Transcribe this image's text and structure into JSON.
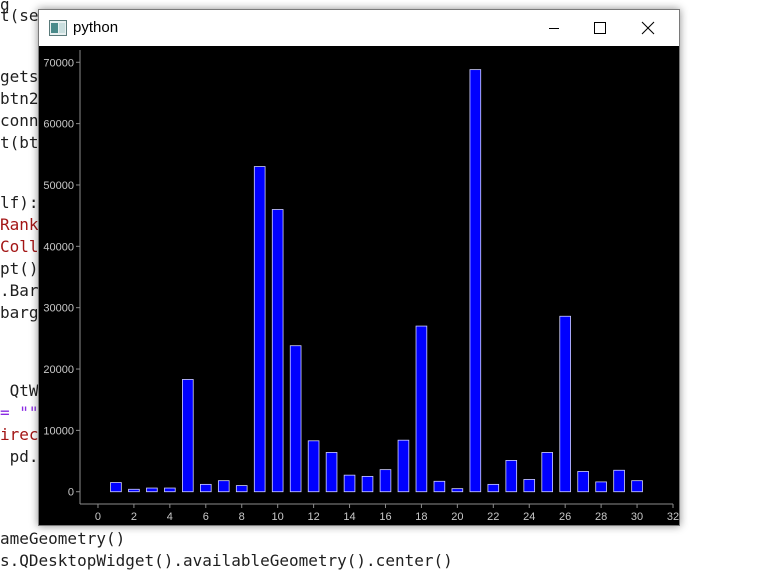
{
  "editor": {
    "lines": [
      {
        "text": "g",
        "top": -6,
        "cls": ""
      },
      {
        "text": "t(se",
        "top": 5,
        "cls": ""
      },
      {
        "text": "gets.",
        "top": 66,
        "cls": ""
      },
      {
        "text": "btn2.",
        "top": 88,
        "cls": ""
      },
      {
        "text": "conn",
        "top": 110,
        "cls": ""
      },
      {
        "text": "t(bt",
        "top": 132,
        "cls": ""
      },
      {
        "text": "lf):",
        "top": 192,
        "cls": ""
      },
      {
        "text": "Rank",
        "top": 214,
        "cls": "red"
      },
      {
        "text": "Coll",
        "top": 236,
        "cls": "red"
      },
      {
        "text": "pt()",
        "top": 258,
        "cls": ""
      },
      {
        "text": ".Bar",
        "top": 280,
        "cls": ""
      },
      {
        "text": "barg",
        "top": 302,
        "cls": ""
      },
      {
        "text": " QtW",
        "top": 380,
        "cls": ""
      },
      {
        "text": "= \"\"",
        "top": 402,
        "cls": "purple"
      },
      {
        "text": "irec",
        "top": 424,
        "cls": "red"
      },
      {
        "text": " pd.",
        "top": 446,
        "cls": ""
      },
      {
        "text": "ameGeometry()",
        "top": 528,
        "cls": ""
      },
      {
        "text": "s.QDesktopWidget().availableGeometry().center()",
        "top": 550,
        "cls": ""
      }
    ]
  },
  "window": {
    "title": "python",
    "icon": "python-window-icon",
    "controls": [
      "minimize-icon",
      "maximize-icon",
      "close-icon"
    ]
  },
  "chart_data": {
    "type": "bar",
    "title": "",
    "xlabel": "",
    "ylabel": "",
    "x": [
      1,
      2,
      3,
      4,
      5,
      6,
      7,
      8,
      9,
      10,
      11,
      12,
      13,
      14,
      15,
      16,
      17,
      18,
      19,
      20,
      21,
      22,
      23,
      24,
      25,
      26,
      27,
      28,
      29,
      30
    ],
    "values": [
      1500,
      400,
      600,
      600,
      18300,
      1200,
      1800,
      1000,
      53000,
      46000,
      23800,
      8300,
      6400,
      2700,
      2500,
      3600,
      8400,
      27000,
      1700,
      500,
      68800,
      1200,
      5100,
      2000,
      6400,
      28600,
      3300,
      1600,
      3500,
      1800
    ],
    "xlim": [
      -1,
      32
    ],
    "ylim": [
      -2000,
      72000
    ],
    "xticks": [
      0,
      2,
      4,
      6,
      8,
      10,
      12,
      14,
      16,
      18,
      20,
      22,
      24,
      26,
      28,
      30,
      32
    ],
    "yticks": [
      0,
      10000,
      20000,
      30000,
      40000,
      50000,
      60000,
      70000
    ],
    "bar_width": 0.6,
    "bar_color": "#0000ff",
    "bar_edge_color": "#d0d0ff",
    "background": "#000000",
    "axis_color": "#8c8c8c",
    "grid": false
  }
}
